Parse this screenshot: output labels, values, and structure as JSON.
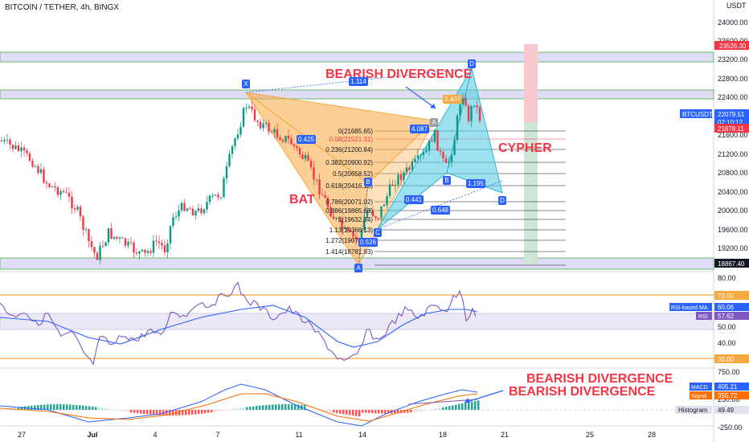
{
  "title": "BITCOIN / TETHER, 4h, BINGX",
  "currency": "USDT",
  "price_axis": [
    "24000.00",
    "23600.00",
    "23200.00",
    "22800.00",
    "22400.00",
    "22000.00",
    "21600.00",
    "21200.00",
    "20800.00",
    "20400.00",
    "20000.00",
    "19600.00",
    "19200.00"
  ],
  "price_badges": {
    "top": "23526.30",
    "symbol": "BTCUSDT",
    "last": "22079.51",
    "countdown": "02:10:12",
    "level": "21878.11",
    "bottom": "18867.40"
  },
  "rsi_axis": [
    "80.00",
    "70.00",
    "50.00",
    "40.00",
    "30.00"
  ],
  "rsi_badges": {
    "ma_label": "RSI-based MA",
    "ma_value": "60.06",
    "rsi_label": "RSI",
    "rsi_value": "57.62"
  },
  "macd_axis": [
    "750.00",
    "250.00",
    "-250.00"
  ],
  "macd_badges": {
    "macd_label": "MACD",
    "macd_value": "405.21",
    "signal_label": "Signal",
    "signal_value": "355.72",
    "hist_label": "Histogram",
    "hist_value": "49.49"
  },
  "time_axis": [
    "27",
    "Jul",
    "4",
    "7",
    "11",
    "14",
    "18",
    "21",
    "25",
    "28"
  ],
  "annotations": {
    "bearish_top": "BEARISH DIVERGENCE",
    "cypher": "CYPHER",
    "bat": "BAT",
    "bearish_macd_1": "BEARISH DIVERGENCE",
    "bearish_macd_2": "BEARISH DIVERGENCE"
  },
  "pattern_points": {
    "x": "X",
    "a": "A",
    "b": "B",
    "c": "C",
    "d1": "D",
    "d2": "D",
    "b2": "B",
    "c2": "C"
  },
  "ratios": [
    "1.114",
    "0.425",
    "4.087",
    "2.407",
    "0.441",
    "0.648",
    "1.195",
    "0.526"
  ],
  "fib_levels": [
    "0(21685.65)",
    "0.08(21521.31)",
    "0.236(21200.84)",
    "0.382(20900.92)",
    "0.5(20658.52)",
    "0.618(20416.13)",
    "0.786(20071.02)",
    "0.886(19865.68)",
    "1(19632.34)",
    "1.13(19366.13)",
    "1.272(19072.63)",
    "1.414(18781.93)"
  ]
}
